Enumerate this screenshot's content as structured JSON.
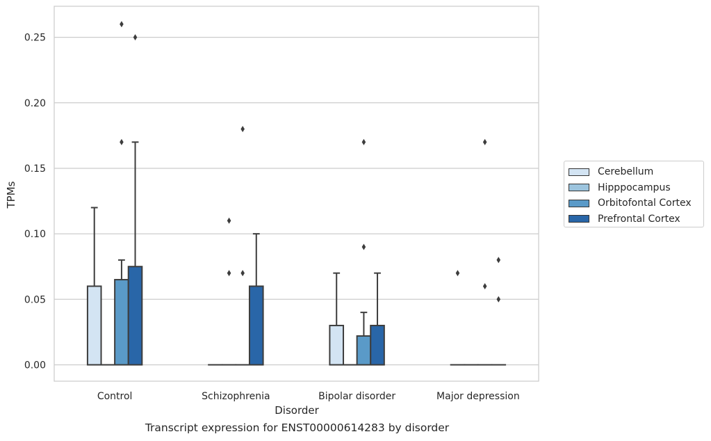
{
  "chart_data": {
    "type": "box",
    "title": "",
    "caption": "Transcript expression for ENST00000614283 by disorder",
    "xlabel": "Disorder",
    "ylabel": "TPMs",
    "ylim": [
      -0.0125,
      0.2737
    ],
    "yticks": [
      "0.00",
      "0.05",
      "0.10",
      "0.15",
      "0.20",
      "0.25"
    ],
    "grid": "horizontal",
    "legend_position": "right",
    "categories": [
      "Control",
      "Schizophrenia",
      "Bipolar disorder",
      "Major depression"
    ],
    "series": [
      {
        "name": "Cerebellum",
        "color": "#d3e4f3",
        "boxes": [
          {
            "q1": 0,
            "median": 0,
            "q3": 0.06,
            "whisker_low": 0,
            "whisker_high": 0.12,
            "outliers": []
          },
          {
            "q1": 0,
            "median": 0,
            "q3": 0,
            "whisker_low": 0,
            "whisker_high": 0,
            "outliers": []
          },
          {
            "q1": 0,
            "median": 0,
            "q3": 0.03,
            "whisker_low": 0,
            "whisker_high": 0.07,
            "outliers": []
          },
          {
            "q1": 0,
            "median": 0,
            "q3": 0,
            "whisker_low": 0,
            "whisker_high": 0,
            "outliers": [
              0.07
            ]
          }
        ]
      },
      {
        "name": "Hipppocampus",
        "color": "#9cc4de",
        "boxes": [
          {
            "q1": 0,
            "median": 0,
            "q3": 0,
            "whisker_low": 0,
            "whisker_high": 0,
            "outliers": []
          },
          {
            "q1": 0,
            "median": 0,
            "q3": 0,
            "whisker_low": 0,
            "whisker_high": 0,
            "outliers": [
              0.07,
              0.11
            ]
          },
          {
            "q1": 0,
            "median": 0,
            "q3": 0,
            "whisker_low": 0,
            "whisker_high": 0,
            "outliers": []
          },
          {
            "q1": 0,
            "median": 0,
            "q3": 0,
            "whisker_low": 0,
            "whisker_high": 0,
            "outliers": []
          }
        ]
      },
      {
        "name": "Orbitofontal Cortex",
        "color": "#5a9ac8",
        "boxes": [
          {
            "q1": 0,
            "median": 0,
            "q3": 0.065,
            "whisker_low": 0,
            "whisker_high": 0.08,
            "outliers": [
              0.17,
              0.26
            ]
          },
          {
            "q1": 0,
            "median": 0,
            "q3": 0,
            "whisker_low": 0,
            "whisker_high": 0,
            "outliers": [
              0.07,
              0.18
            ]
          },
          {
            "q1": 0,
            "median": 0,
            "q3": 0.022,
            "whisker_low": 0,
            "whisker_high": 0.04,
            "outliers": [
              0.09,
              0.17
            ]
          },
          {
            "q1": 0,
            "median": 0,
            "q3": 0,
            "whisker_low": 0,
            "whisker_high": 0,
            "outliers": [
              0.06,
              0.17
            ]
          }
        ]
      },
      {
        "name": "Prefrontal Cortex",
        "color": "#2966a8",
        "boxes": [
          {
            "q1": 0,
            "median": 0,
            "q3": 0.075,
            "whisker_low": 0,
            "whisker_high": 0.17,
            "outliers": [
              0.25
            ]
          },
          {
            "q1": 0,
            "median": 0,
            "q3": 0.06,
            "whisker_low": 0,
            "whisker_high": 0.1,
            "outliers": []
          },
          {
            "q1": 0,
            "median": 0,
            "q3": 0.03,
            "whisker_low": 0,
            "whisker_high": 0.07,
            "outliers": []
          },
          {
            "q1": 0,
            "median": 0,
            "q3": 0,
            "whisker_low": 0,
            "whisker_high": 0,
            "outliers": [
              0.05,
              0.08
            ]
          }
        ]
      }
    ]
  }
}
